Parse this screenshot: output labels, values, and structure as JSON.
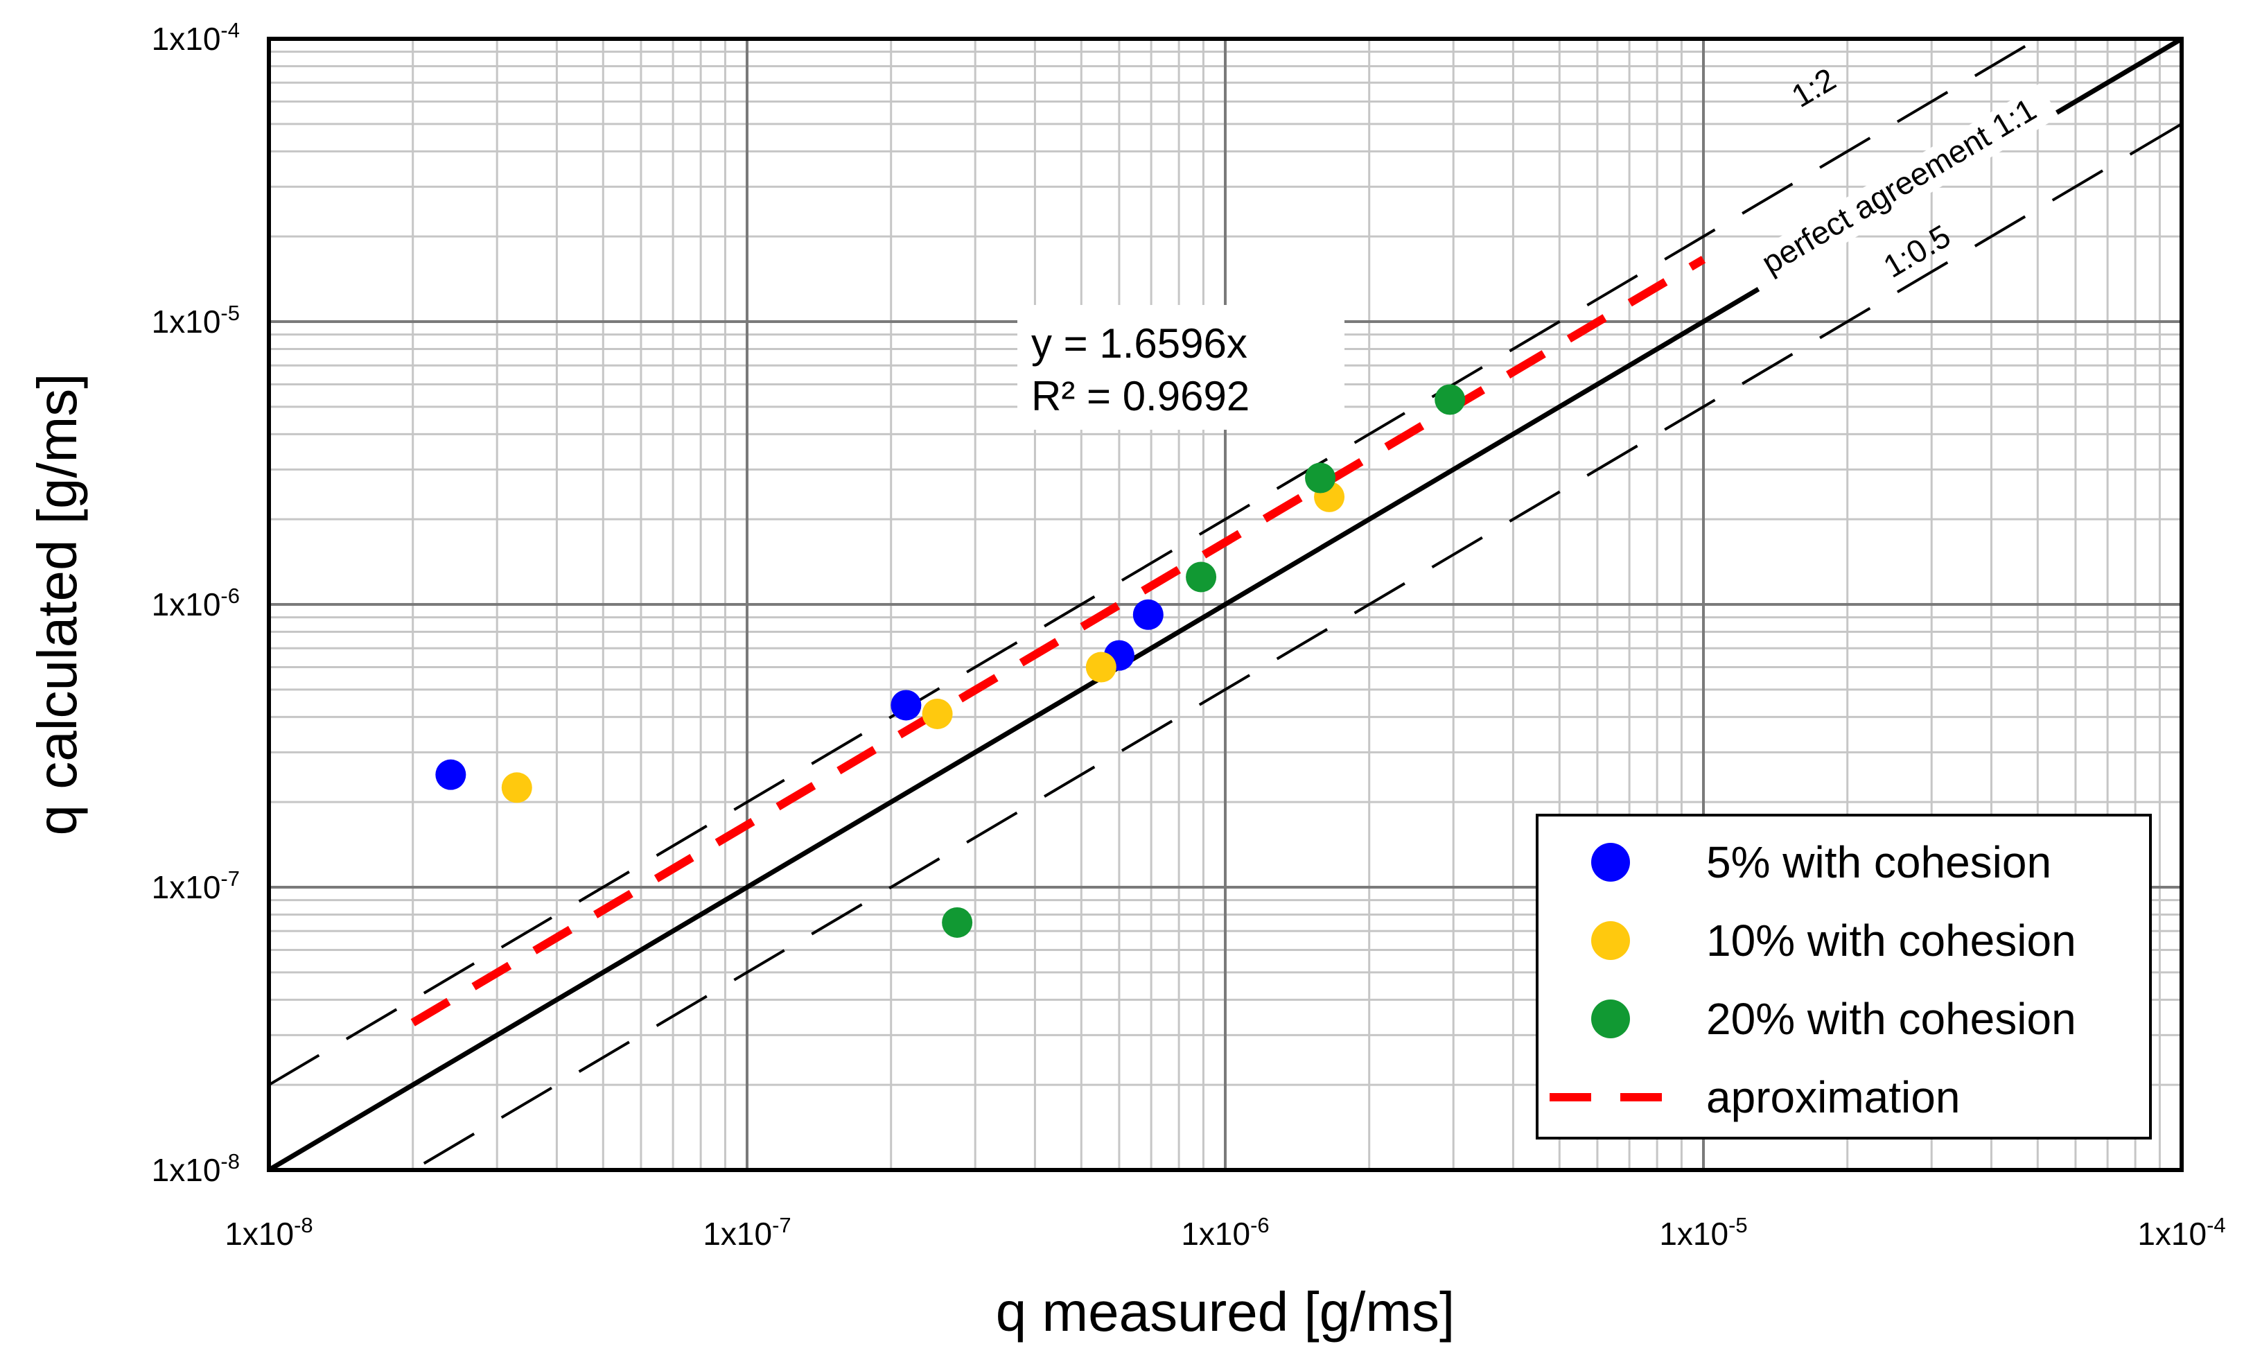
{
  "chart_data": {
    "type": "scatter",
    "scale": "log-log",
    "xlabel": "q  measured [g/ms]",
    "ylabel": "q  calculated [g/ms]",
    "xlim": [
      1e-08,
      0.0001
    ],
    "ylim": [
      1e-08,
      0.0001
    ],
    "grid": true,
    "x_ticks": [
      {
        "value": 1e-08,
        "base": "1x10",
        "exp": "-8"
      },
      {
        "value": 1e-07,
        "base": "1x10",
        "exp": "-7"
      },
      {
        "value": 1e-06,
        "base": "1x10",
        "exp": "-6"
      },
      {
        "value": 1e-05,
        "base": "1x10",
        "exp": "-5"
      },
      {
        "value": 0.0001,
        "base": "1x10",
        "exp": "-4"
      }
    ],
    "y_ticks": [
      {
        "value": 1e-08,
        "base": "1x10",
        "exp": "-8"
      },
      {
        "value": 1e-07,
        "base": "1x10",
        "exp": "-7"
      },
      {
        "value": 1e-06,
        "base": "1x10",
        "exp": "-6"
      },
      {
        "value": 1e-05,
        "base": "1x10",
        "exp": "-5"
      },
      {
        "value": 0.0001,
        "base": "1x10",
        "exp": "-4"
      }
    ],
    "series": [
      {
        "name": "5% with cohesion",
        "color": "#0000ff",
        "points": [
          [
            2.4e-08,
            2.5e-07
          ],
          [
            2.15e-07,
            4.4e-07
          ],
          [
            6e-07,
            6.6e-07
          ],
          [
            6.9e-07,
            9.2e-07
          ]
        ]
      },
      {
        "name": "10% with cohesion",
        "color": "#ffc90e",
        "points": [
          [
            3.3e-08,
            2.25e-07
          ],
          [
            2.5e-07,
            4.1e-07
          ],
          [
            5.5e-07,
            6e-07
          ],
          [
            1.65e-06,
            2.4e-06
          ]
        ]
      },
      {
        "name": "20% with cohesion",
        "color": "#119933",
        "points": [
          [
            2.75e-07,
            7.5e-08
          ],
          [
            8.9e-07,
            1.25e-06
          ],
          [
            1.58e-06,
            2.8e-06
          ],
          [
            2.95e-06,
            5.3e-06
          ]
        ]
      }
    ],
    "reference_lines": [
      {
        "name": "perfect agreement 1:1",
        "label": "perfect agreement 1:1",
        "slope": 1,
        "style": "solid",
        "color": "#000000"
      },
      {
        "name": "1:2",
        "label": "1:2",
        "slope": 2,
        "style": "dashed",
        "color": "#000000"
      },
      {
        "name": "1:0.5",
        "label": "1:0.5",
        "slope": 0.5,
        "style": "dashed",
        "color": "#000000"
      }
    ],
    "fit": {
      "name": "aproximation",
      "slope": 1.6596,
      "x_range": [
        2e-08,
        1e-05
      ],
      "color": "#ff0000"
    },
    "annotation": {
      "equation": "y = 1.6596x",
      "r2": "R² = 0.9692"
    },
    "legend": {
      "position": "bottom-right",
      "entries": [
        {
          "label": "5% with cohesion",
          "kind": "marker",
          "color": "#0000ff"
        },
        {
          "label": "10% with cohesion",
          "kind": "marker",
          "color": "#ffc90e"
        },
        {
          "label": "20% with cohesion",
          "kind": "marker",
          "color": "#119933"
        },
        {
          "label": "aproximation",
          "kind": "line",
          "color": "#ff0000"
        }
      ]
    }
  }
}
